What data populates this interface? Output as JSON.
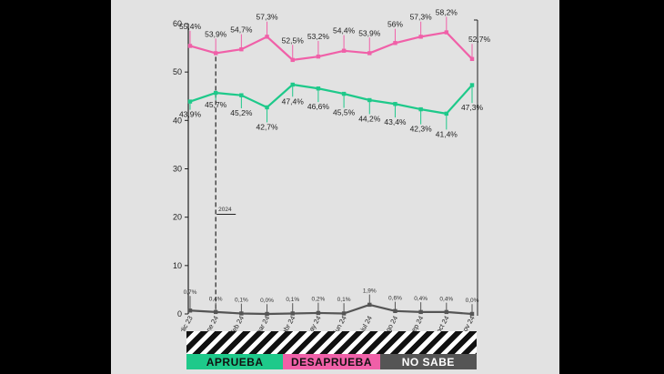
{
  "chart_data": {
    "type": "line",
    "categories": [
      "dic 23",
      "ene 24",
      "feb 24",
      "mar 24",
      "abr 24",
      "may 24",
      "jun 24",
      "jul 24",
      "ago 24",
      "sep 24",
      "oct 24",
      "nov 24"
    ],
    "ylim": [
      0,
      60
    ],
    "yticks": [
      0,
      10,
      20,
      30,
      40,
      50,
      60
    ],
    "series": [
      {
        "name": "DESAPRUEBA",
        "color": "#f060a8",
        "values": [
          55.4,
          53.9,
          54.7,
          57.3,
          52.5,
          53.2,
          54.4,
          53.9,
          56.0,
          57.3,
          58.2,
          52.7
        ],
        "labels": [
          "55,4%",
          "53,9%",
          "54,7%",
          "57,3%",
          "52,5%",
          "53,2%",
          "54,4%",
          "53,9%",
          "56%",
          "57,3%",
          "58,2%",
          "52,7%"
        ]
      },
      {
        "name": "APRUEBA",
        "color": "#1ec98a",
        "values": [
          43.9,
          45.7,
          45.2,
          42.7,
          47.4,
          46.6,
          45.5,
          44.2,
          43.4,
          42.3,
          41.4,
          47.3
        ],
        "labels": [
          "43,9%",
          "45,7%",
          "45,2%",
          "42,7%",
          "47,4%",
          "46,6%",
          "45,5%",
          "44,2%",
          "43,4%",
          "42,3%",
          "41,4%",
          "47,3%"
        ]
      },
      {
        "name": "NO SABE",
        "color": "#555555",
        "values": [
          0.7,
          0.4,
          0.1,
          0.0,
          0.1,
          0.2,
          0.1,
          1.9,
          0.6,
          0.4,
          0.4,
          0.0
        ],
        "labels": [
          "0,7%",
          "0,4%",
          "0,1%",
          "0,0%",
          "0,1%",
          "0,2%",
          "0,1%",
          "1,9%",
          "0,6%",
          "0,4%",
          "0,4%",
          "0,0%"
        ]
      }
    ],
    "annotation": {
      "text": "2024"
    },
    "legend": [
      {
        "label": "APRUEBA",
        "color": "#1ec98a"
      },
      {
        "label": "DESAPRUEBA",
        "color": "#f060a8"
      },
      {
        "label": "NO SABE",
        "color": "#555555"
      }
    ]
  }
}
